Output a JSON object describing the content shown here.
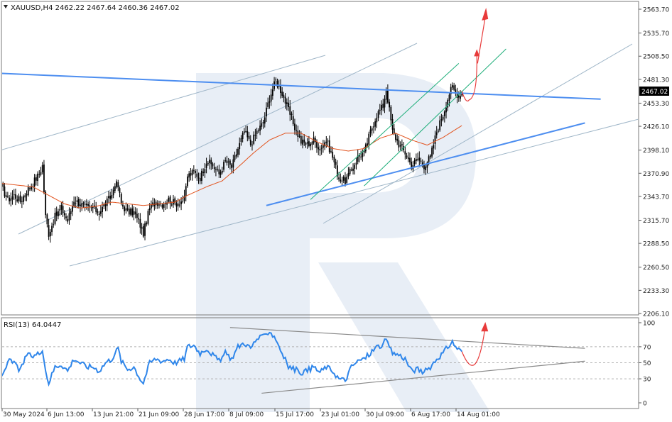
{
  "main_header": "XAUUSD,H4  2462.22 2467.64 2460.36 2467.02",
  "rsi_header": "RSI(13) 64.0447",
  "current_price_label": "2467.02",
  "colors": {
    "candle": "#000000",
    "ma": "#e2531e",
    "trend_blue": "#4d8ef0",
    "channel_green": "#1fae7a",
    "channel_gray": "#9fb6c8",
    "forecast_red": "#e83a3a",
    "rsi": "#2f86ea",
    "watermark": "#e8eef6"
  },
  "chart_data": [
    {
      "type": "candlestick",
      "symbol": "XAUUSD",
      "timeframe": "H4",
      "ohlc_last": {
        "open": 2462.22,
        "high": 2467.64,
        "low": 2460.36,
        "close": 2467.02
      },
      "current_price": 2467.02,
      "y_ticks": [
        2563.7,
        2535.7,
        2508.5,
        2481.3,
        2453.3,
        2426.1,
        2398.1,
        2370.9,
        2343.7,
        2315.7,
        2288.5,
        2260.5,
        2233.3,
        2206.1
      ],
      "ylim": [
        2204.5,
        2566
      ],
      "close_anchors": [
        [
          0,
          2355
        ],
        [
          4,
          2340
        ],
        [
          8,
          2345
        ],
        [
          12,
          2338
        ],
        [
          16,
          2350
        ],
        [
          20,
          2360
        ],
        [
          24,
          2370
        ],
        [
          26,
          2380
        ],
        [
          28,
          2320
        ],
        [
          30,
          2300
        ],
        [
          34,
          2320
        ],
        [
          38,
          2330
        ],
        [
          42,
          2315
        ],
        [
          46,
          2340
        ],
        [
          50,
          2335
        ],
        [
          54,
          2330
        ],
        [
          58,
          2330
        ],
        [
          62,
          2325
        ],
        [
          66,
          2335
        ],
        [
          70,
          2345
        ],
        [
          72,
          2360
        ],
        [
          74,
          2355
        ],
        [
          76,
          2335
        ],
        [
          80,
          2325
        ],
        [
          84,
          2325
        ],
        [
          88,
          2310
        ],
        [
          90,
          2300
        ],
        [
          94,
          2330
        ],
        [
          98,
          2338
        ],
        [
          102,
          2335
        ],
        [
          106,
          2340
        ],
        [
          110,
          2335
        ],
        [
          116,
          2340
        ],
        [
          118,
          2368
        ],
        [
          122,
          2372
        ],
        [
          126,
          2366
        ],
        [
          130,
          2385
        ],
        [
          134,
          2380
        ],
        [
          138,
          2370
        ],
        [
          142,
          2385
        ],
        [
          146,
          2378
        ],
        [
          150,
          2400
        ],
        [
          154,
          2420
        ],
        [
          158,
          2405
        ],
        [
          162,
          2420
        ],
        [
          166,
          2430
        ],
        [
          170,
          2460
        ],
        [
          174,
          2480
        ],
        [
          178,
          2465
        ],
        [
          182,
          2445
        ],
        [
          186,
          2425
        ],
        [
          190,
          2408
        ],
        [
          194,
          2405
        ],
        [
          198,
          2410
        ],
        [
          202,
          2400
        ],
        [
          206,
          2410
        ],
        [
          210,
          2390
        ],
        [
          214,
          2365
        ],
        [
          218,
          2362
        ],
        [
          222,
          2375
        ],
        [
          226,
          2390
        ],
        [
          230,
          2395
        ],
        [
          234,
          2420
        ],
        [
          238,
          2440
        ],
        [
          242,
          2450
        ],
        [
          244,
          2470
        ],
        [
          246,
          2445
        ],
        [
          248,
          2420
        ],
        [
          252,
          2405
        ],
        [
          256,
          2395
        ],
        [
          260,
          2380
        ],
        [
          264,
          2388
        ],
        [
          268,
          2380
        ],
        [
          272,
          2390
        ],
        [
          276,
          2420
        ],
        [
          280,
          2440
        ],
        [
          284,
          2465
        ],
        [
          286,
          2472
        ],
        [
          288,
          2465
        ],
        [
          291,
          2462
        ],
        [
          292,
          2467
        ]
      ],
      "ma_anchors": [
        [
          0,
          2359
        ],
        [
          20,
          2355
        ],
        [
          30,
          2345
        ],
        [
          40,
          2335
        ],
        [
          50,
          2330
        ],
        [
          60,
          2332
        ],
        [
          70,
          2337
        ],
        [
          80,
          2335
        ],
        [
          90,
          2333
        ],
        [
          100,
          2335
        ],
        [
          110,
          2337
        ],
        [
          118,
          2345
        ],
        [
          130,
          2355
        ],
        [
          140,
          2362
        ],
        [
          150,
          2378
        ],
        [
          160,
          2395
        ],
        [
          170,
          2410
        ],
        [
          180,
          2418
        ],
        [
          190,
          2418
        ],
        [
          200,
          2408
        ],
        [
          210,
          2400
        ],
        [
          220,
          2397
        ],
        [
          230,
          2400
        ],
        [
          240,
          2412
        ],
        [
          250,
          2418
        ],
        [
          260,
          2410
        ],
        [
          270,
          2404
        ],
        [
          280,
          2413
        ],
        [
          292,
          2427
        ]
      ],
      "annotation_lines": [
        {
          "kind": "resistance",
          "color": "blue",
          "from": [
            -52,
            2492.5
          ],
          "to": [
            380,
            2458
          ]
        },
        {
          "kind": "support",
          "color": "blue",
          "from": [
            168,
            2333
          ],
          "to": [
            370,
            2430
          ]
        },
        {
          "kind": "channel",
          "color": "green",
          "from": [
            196,
            2340
          ],
          "to": [
            290,
            2500
          ]
        },
        {
          "kind": "channel",
          "color": "green",
          "from": [
            230,
            2356
          ],
          "to": [
            320,
            2517
          ]
        }
      ],
      "forecast": "price dips slightly then continues up toward 2550+"
    },
    {
      "type": "line",
      "indicator": "RSI",
      "period": 13,
      "last_value": 64.0447,
      "y_ticks": [
        100,
        70,
        50,
        30,
        0
      ],
      "levels": [
        70,
        50,
        30
      ],
      "ylim": [
        0,
        100
      ],
      "rsi_anchors": [
        [
          0,
          32
        ],
        [
          4,
          52
        ],
        [
          8,
          50
        ],
        [
          12,
          40
        ],
        [
          16,
          60
        ],
        [
          20,
          58
        ],
        [
          24,
          62
        ],
        [
          26,
          68
        ],
        [
          28,
          40
        ],
        [
          30,
          25
        ],
        [
          34,
          45
        ],
        [
          38,
          48
        ],
        [
          42,
          40
        ],
        [
          46,
          55
        ],
        [
          50,
          50
        ],
        [
          54,
          45
        ],
        [
          58,
          45
        ],
        [
          62,
          40
        ],
        [
          66,
          50
        ],
        [
          70,
          55
        ],
        [
          72,
          62
        ],
        [
          74,
          68
        ],
        [
          76,
          52
        ],
        [
          80,
          42
        ],
        [
          84,
          45
        ],
        [
          88,
          30
        ],
        [
          90,
          25
        ],
        [
          94,
          50
        ],
        [
          98,
          55
        ],
        [
          102,
          52
        ],
        [
          106,
          55
        ],
        [
          110,
          50
        ],
        [
          116,
          55
        ],
        [
          118,
          70
        ],
        [
          122,
          72
        ],
        [
          126,
          62
        ],
        [
          130,
          68
        ],
        [
          134,
          60
        ],
        [
          138,
          52
        ],
        [
          142,
          62
        ],
        [
          146,
          55
        ],
        [
          150,
          70
        ],
        [
          154,
          75
        ],
        [
          158,
          68
        ],
        [
          162,
          80
        ],
        [
          166,
          82
        ],
        [
          170,
          90
        ],
        [
          174,
          80
        ],
        [
          178,
          62
        ],
        [
          182,
          45
        ],
        [
          186,
          42
        ],
        [
          190,
          38
        ],
        [
          194,
          40
        ],
        [
          198,
          45
        ],
        [
          202,
          38
        ],
        [
          206,
          45
        ],
        [
          210,
          40
        ],
        [
          214,
          30
        ],
        [
          218,
          28
        ],
        [
          222,
          45
        ],
        [
          226,
          52
        ],
        [
          230,
          55
        ],
        [
          234,
          62
        ],
        [
          238,
          70
        ],
        [
          242,
          72
        ],
        [
          244,
          80
        ],
        [
          246,
          68
        ],
        [
          248,
          62
        ],
        [
          252,
          60
        ],
        [
          256,
          55
        ],
        [
          260,
          40
        ],
        [
          264,
          42
        ],
        [
          268,
          38
        ],
        [
          272,
          45
        ],
        [
          276,
          55
        ],
        [
          280,
          62
        ],
        [
          284,
          72
        ],
        [
          286,
          76
        ],
        [
          288,
          70
        ],
        [
          291,
          65
        ],
        [
          292,
          64
        ]
      ],
      "annotation_lines": [
        {
          "kind": "resistance",
          "from": [
            145,
            94
          ],
          "to": [
            370,
            68
          ]
        },
        {
          "kind": "support",
          "from": [
            165,
            12
          ],
          "to": [
            370,
            52
          ]
        }
      ]
    }
  ],
  "x_axis_labels": [
    "30 May 2024",
    "6 Jun 13:00",
    "13 Jun 21:00",
    "21 Jun 09:00",
    "28 Jun 17:00",
    "8 Jul 09:00",
    "15 Jul 17:00",
    "23 Jul 01:00",
    "30 Jul 09:00",
    "6 Aug 17:00",
    "14 Aug 01:00"
  ]
}
